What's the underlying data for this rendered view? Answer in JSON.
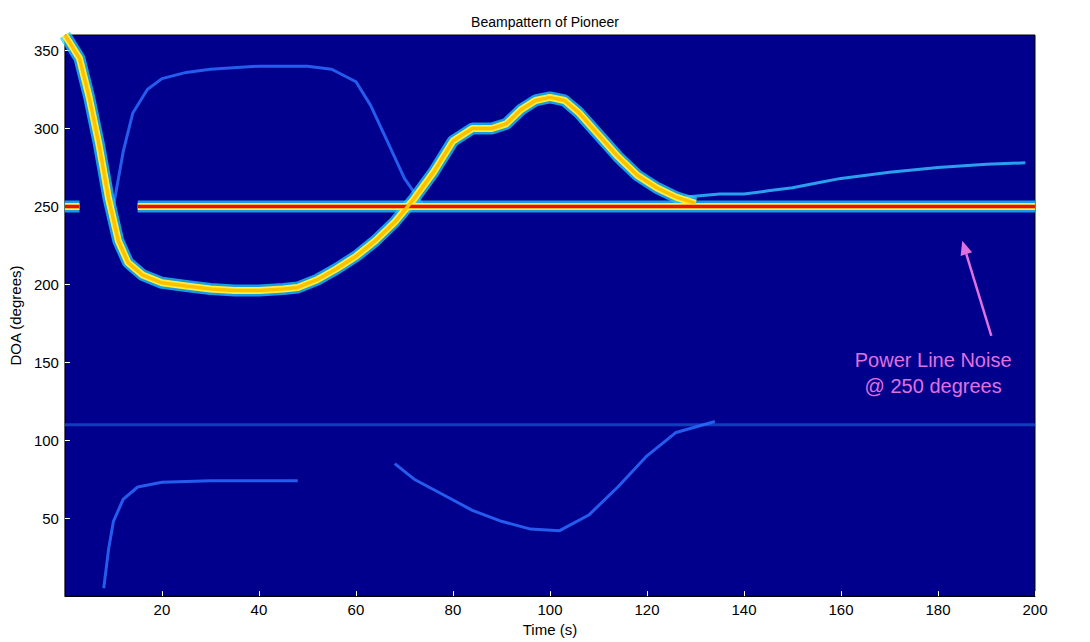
{
  "chart_data": {
    "type": "line",
    "title": "Beampattern of Pioneer",
    "x_label": "Time (s)",
    "y_label": "DOA (degrees)",
    "xlim": [
      0,
      200
    ],
    "xticks": [
      20,
      40,
      60,
      80,
      100,
      120,
      140,
      160,
      180,
      200
    ],
    "ylim": [
      0,
      360
    ],
    "yticks": [
      50,
      100,
      150,
      200,
      250,
      300,
      350
    ],
    "grid": false,
    "series": [
      {
        "color": "#1846c8",
        "line_style": "solid",
        "x": [
          0,
          200
        ],
        "values": [
          110,
          110
        ]
      },
      {
        "color": "#e81000",
        "line_style": "glow",
        "x": [
          0,
          3,
          9,
          15,
          200
        ],
        "values": [
          250,
          250,
          null,
          250,
          250
        ]
      },
      {
        "color": "#ffc000",
        "line_style": "glow",
        "x": [
          0,
          3,
          5,
          7,
          9,
          11,
          13,
          16,
          20,
          25,
          30,
          35,
          40,
          45,
          48,
          52,
          56,
          60,
          64,
          68,
          72,
          76,
          80,
          84,
          88,
          91,
          94,
          97,
          100,
          103,
          106,
          110,
          114,
          118,
          122,
          126,
          130
        ],
        "values": [
          360,
          345,
          320,
          290,
          255,
          228,
          214,
          206,
          201,
          199,
          197,
          196,
          196,
          197,
          198,
          203,
          210,
          218,
          228,
          240,
          255,
          272,
          292,
          300,
          300,
          303,
          312,
          318,
          320,
          318,
          310,
          296,
          282,
          270,
          262,
          256,
          252
        ]
      },
      {
        "color": "#2c6cff",
        "line_style": "solid",
        "x": [
          10,
          12,
          14,
          17,
          20,
          25,
          30,
          40,
          50,
          55,
          60,
          63,
          66,
          70,
          74
        ],
        "values": [
          250,
          285,
          310,
          325,
          332,
          336,
          338,
          340,
          340,
          338,
          330,
          315,
          295,
          268,
          250
        ]
      },
      {
        "color": "#2c6cff",
        "line_style": "solid",
        "x": [
          8,
          9,
          10,
          12,
          15,
          20,
          30,
          40,
          48
        ],
        "values": [
          5,
          30,
          48,
          62,
          70,
          73,
          74,
          74,
          74
        ]
      },
      {
        "color": "#2c6cff",
        "line_style": "solid",
        "x": [
          68,
          72,
          78,
          84,
          90,
          96,
          102,
          108,
          114,
          120,
          126,
          134
        ],
        "values": [
          85,
          75,
          65,
          55,
          48,
          43,
          42,
          52,
          70,
          90,
          105,
          112
        ]
      },
      {
        "color": "#33bbff",
        "line_style": "solid",
        "x": [
          128,
          135,
          140,
          145,
          150,
          155,
          160,
          170,
          180,
          190,
          198
        ],
        "values": [
          256,
          258,
          258,
          260,
          262,
          265,
          268,
          272,
          275,
          277,
          278
        ]
      }
    ],
    "annotation": {
      "text": [
        "Power Line Noise",
        "@ 250 degrees"
      ],
      "x": 179,
      "y": 143,
      "arrow_from": [
        191,
        167
      ],
      "arrow_to": [
        185,
        228
      ],
      "color": "#e070e0"
    }
  }
}
